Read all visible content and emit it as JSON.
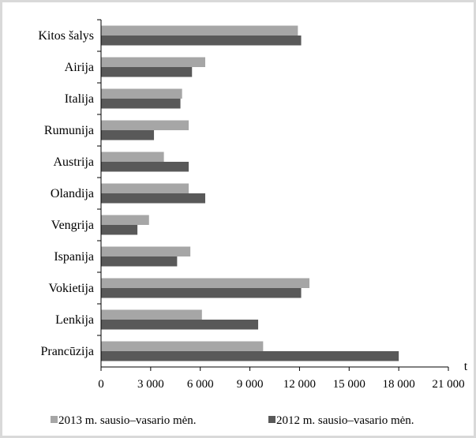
{
  "chart_data": {
    "type": "bar",
    "orientation": "horizontal",
    "categories": [
      "Kitos šalys",
      "Airija",
      "Italija",
      "Rumunija",
      "Austrija",
      "Olandija",
      "Vengrija",
      "Ispanija",
      "Vokietija",
      "Lenkija",
      "Prancūzija"
    ],
    "series": [
      {
        "name": "2013 m. sausio–vasario mėn.",
        "color": "#a6a6a6",
        "values": [
          11900,
          6300,
          4900,
          5300,
          3800,
          5300,
          2900,
          5400,
          12600,
          6100,
          9800
        ]
      },
      {
        "name": "2012 m. sausio–vasario mėn.",
        "color": "#595959",
        "values": [
          12100,
          5500,
          4800,
          3200,
          5300,
          6300,
          2200,
          4600,
          12100,
          9500,
          18000
        ]
      }
    ],
    "xlim": [
      0,
      21000
    ],
    "xticks": [
      0,
      3000,
      6000,
      9000,
      12000,
      15000,
      18000,
      21000
    ],
    "xtick_labels": [
      "0",
      "3 000",
      "6 000",
      "9 000",
      "12 000",
      "15 000",
      "18 000",
      "21 000"
    ],
    "xlabel": "t",
    "grid": false,
    "legend_position": "bottom"
  }
}
